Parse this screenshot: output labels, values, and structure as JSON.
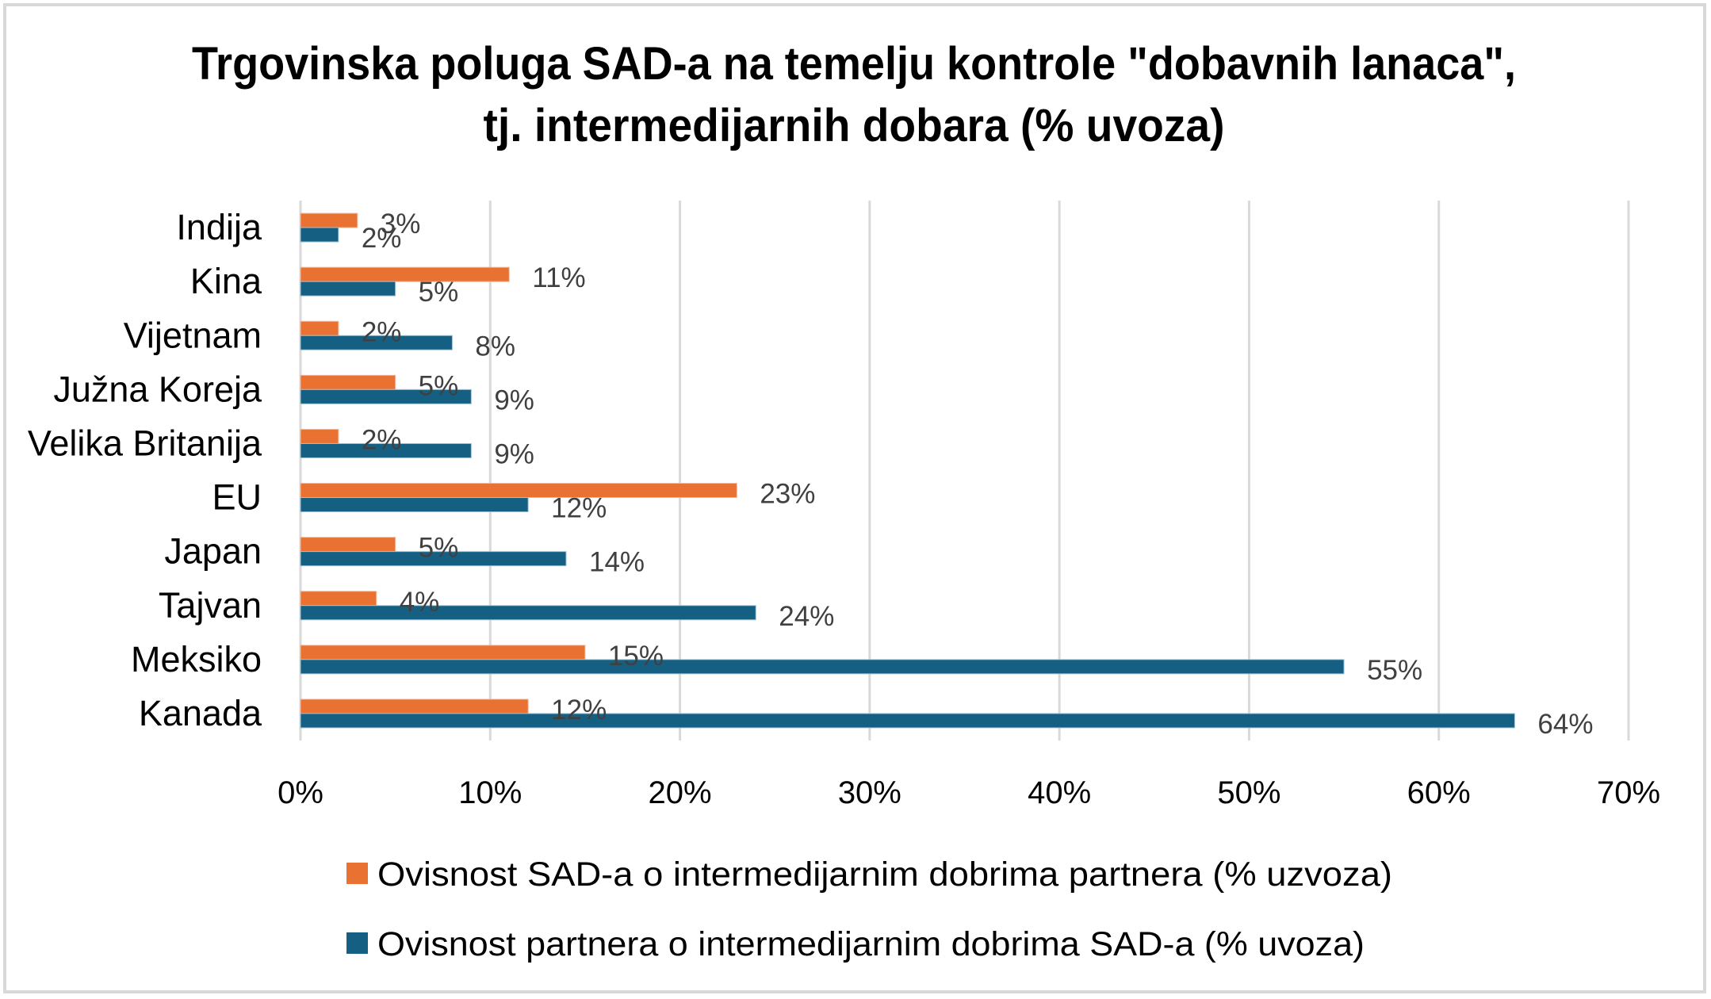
{
  "chart_data": {
    "type": "bar",
    "orientation": "horizontal",
    "title": "Trgovinska poluga SAD-a na temelju kontrole \"dobavnih lanaca\", tj. intermedijarnih dobara (% uvoza)",
    "title_lines": [
      "Trgovinska poluga SAD-a na temelju kontrole \"dobavnih lanaca\",",
      "tj. intermedijarnih dobara (% uvoza)"
    ],
    "xlabel": "",
    "ylabel": "",
    "categories": [
      "Indija",
      "Kina",
      "Vijetnam",
      "Južna Koreja",
      "Velika Britanija",
      "EU",
      "Japan",
      "Tajvan",
      "Meksiko",
      "Kanada"
    ],
    "series": [
      {
        "name": "Ovisnost SAD-a o intermedijarnim dobrima partnera (% uzvoza)",
        "color": "#E97132",
        "values": [
          3,
          11,
          2,
          5,
          2,
          23,
          5,
          4,
          15,
          12
        ]
      },
      {
        "name": "Ovisnost partnera o intermedijarnim dobrima SAD-a (% uvoza)",
        "color": "#156082",
        "values": [
          2,
          5,
          8,
          9,
          9,
          12,
          14,
          24,
          55,
          64
        ]
      }
    ],
    "value_suffix": "%",
    "xlim": [
      0,
      70
    ],
    "x_ticks": [
      0,
      10,
      20,
      30,
      40,
      50,
      60,
      70
    ],
    "x_tick_labels": [
      "0%",
      "10%",
      "20%",
      "30%",
      "40%",
      "50%",
      "60%",
      "70%"
    ],
    "grid": "vertical",
    "data_labels": true,
    "legend_position": "bottom"
  }
}
